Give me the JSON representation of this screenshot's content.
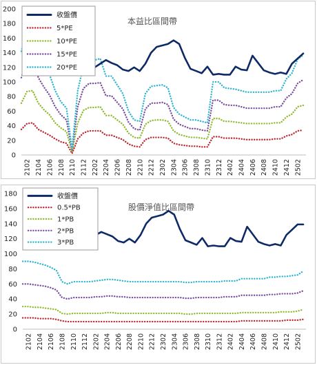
{
  "chart_data": [
    {
      "type": "line",
      "title": "本益比區間帶",
      "ylim": [
        0,
        200
      ],
      "yticks": [
        0,
        20,
        40,
        60,
        80,
        100,
        120,
        140,
        160,
        180,
        200
      ],
      "grid": false,
      "legend": "top-left",
      "x": [
        "2101",
        "2102",
        "2103",
        "2104",
        "2105",
        "2106",
        "2107",
        "2108",
        "2109",
        "2110",
        "2111",
        "2112",
        "2201",
        "2202",
        "2203",
        "2204",
        "2205",
        "2206",
        "2207",
        "2208",
        "2209",
        "2210",
        "2211",
        "2212",
        "2301",
        "2302",
        "2303",
        "2304",
        "2305",
        "2306",
        "2307",
        "2308",
        "2309",
        "2310",
        "2311",
        "2312",
        "2401",
        "2402",
        "2403",
        "2404",
        "2405",
        "2406",
        "2407",
        "2408",
        "2409",
        "2410",
        "2411",
        "2412",
        "2501",
        "2502",
        "2503"
      ],
      "xticks": [
        "2102",
        "2104",
        "2106",
        "2108",
        "2110",
        "2112",
        "2202",
        "2204",
        "2206",
        "2208",
        "2210",
        "2212",
        "2302",
        "2304",
        "2306",
        "2308",
        "2310",
        "2312",
        "2402",
        "2404",
        "2406",
        "2408",
        "2410",
        "2412",
        "2502"
      ],
      "series": [
        {
          "name": "收盤價",
          "color": "#0d2a66",
          "style": "solid",
          "values": [
            null,
            null,
            null,
            null,
            null,
            null,
            null,
            null,
            null,
            null,
            120,
            133,
            130,
            120,
            125,
            130,
            126,
            123,
            117,
            115,
            120,
            115,
            125,
            140,
            148,
            150,
            152,
            157,
            152,
            133,
            118,
            115,
            112,
            121,
            110,
            111,
            110,
            110,
            121,
            117,
            116,
            136,
            126,
            116,
            113,
            111,
            113,
            111,
            125,
            132,
            139
          ]
        },
        {
          "name": "5*PE",
          "color": "#c0282f",
          "style": "dotted",
          "values": [
            35,
            43,
            44,
            35,
            31,
            27,
            22,
            18,
            16,
            2,
            22,
            30,
            33,
            33,
            33,
            27,
            27,
            24,
            21,
            15,
            12,
            11,
            21,
            24,
            24,
            24,
            23,
            16,
            14,
            13,
            12,
            12,
            11,
            11,
            25,
            25,
            23,
            23,
            23,
            22,
            21,
            21,
            21,
            21,
            21,
            22,
            22,
            26,
            28,
            33,
            34
          ]
        },
        {
          "name": "10*PE",
          "color": "#8fbb2f",
          "style": "dotted",
          "values": [
            71,
            87,
            88,
            71,
            62,
            55,
            44,
            37,
            32,
            4,
            44,
            61,
            65,
            65,
            66,
            54,
            54,
            48,
            42,
            30,
            24,
            23,
            42,
            47,
            48,
            48,
            46,
            33,
            28,
            26,
            24,
            24,
            23,
            22,
            50,
            50,
            46,
            46,
            45,
            44,
            43,
            43,
            43,
            43,
            43,
            44,
            44,
            52,
            56,
            66,
            68
          ]
        },
        {
          "name": "15*PE",
          "color": "#7a4ea0",
          "style": "dotted",
          "values": [
            106,
            130,
            132,
            106,
            93,
            82,
            66,
            55,
            48,
            6,
            66,
            91,
            98,
            98,
            99,
            81,
            81,
            72,
            63,
            45,
            36,
            34,
            63,
            71,
            71,
            72,
            69,
            49,
            42,
            39,
            36,
            36,
            34,
            33,
            75,
            75,
            69,
            68,
            68,
            66,
            64,
            64,
            64,
            64,
            64,
            66,
            66,
            78,
            84,
            98,
            103
          ]
        },
        {
          "name": "20*PE",
          "color": "#2fb5d1",
          "style": "dotted",
          "values": [
            142,
            174,
            176,
            142,
            124,
            110,
            88,
            73,
            64,
            8,
            88,
            122,
            130,
            130,
            132,
            108,
            108,
            96,
            84,
            60,
            48,
            46,
            84,
            94,
            95,
            96,
            92,
            65,
            56,
            52,
            48,
            48,
            46,
            44,
            100,
            100,
            92,
            91,
            90,
            88,
            86,
            86,
            86,
            86,
            86,
            88,
            88,
            104,
            112,
            131,
            137
          ]
        }
      ]
    },
    {
      "type": "line",
      "title": "股價淨值比區間帶",
      "ylim": [
        0,
        180
      ],
      "yticks": [
        0,
        20,
        40,
        60,
        80,
        100,
        120,
        140,
        160,
        180
      ],
      "grid": false,
      "legend": "top-left",
      "x": [
        "2101",
        "2102",
        "2103",
        "2104",
        "2105",
        "2106",
        "2107",
        "2108",
        "2109",
        "2110",
        "2111",
        "2112",
        "2201",
        "2202",
        "2203",
        "2204",
        "2205",
        "2206",
        "2207",
        "2208",
        "2209",
        "2210",
        "2211",
        "2212",
        "2301",
        "2302",
        "2303",
        "2304",
        "2305",
        "2306",
        "2307",
        "2308",
        "2309",
        "2310",
        "2311",
        "2312",
        "2401",
        "2402",
        "2403",
        "2404",
        "2405",
        "2406",
        "2407",
        "2408",
        "2409",
        "2410",
        "2411",
        "2412",
        "2501",
        "2502",
        "2503"
      ],
      "xticks": [
        "2102",
        "2104",
        "2106",
        "2108",
        "2110",
        "2112",
        "2202",
        "2204",
        "2206",
        "2208",
        "2210",
        "2212",
        "2302",
        "2304",
        "2306",
        "2308",
        "2310",
        "2312",
        "2402",
        "2404",
        "2406",
        "2408",
        "2410",
        "2412",
        "2502"
      ],
      "series": [
        {
          "name": "收盤價",
          "color": "#0d2a66",
          "style": "solid",
          "values": [
            null,
            null,
            null,
            null,
            null,
            null,
            null,
            null,
            null,
            null,
            120,
            133,
            117,
            125,
            129,
            126,
            123,
            117,
            115,
            120,
            115,
            125,
            140,
            148,
            150,
            152,
            157,
            152,
            133,
            118,
            115,
            112,
            121,
            110,
            111,
            110,
            110,
            121,
            117,
            116,
            136,
            126,
            116,
            113,
            111,
            113,
            111,
            125,
            132,
            139,
            139
          ]
        },
        {
          "name": "0.5*PB",
          "color": "#c0282f",
          "style": "dotted",
          "values": [
            15,
            15,
            15,
            14,
            14,
            14,
            13,
            11,
            10,
            10,
            10,
            10,
            10,
            10,
            10,
            10,
            10,
            10,
            10,
            10,
            10,
            10,
            10,
            10,
            10,
            10,
            10,
            10,
            10,
            10,
            10,
            10,
            10,
            10,
            10,
            10,
            10,
            10,
            10,
            11,
            11,
            11,
            11,
            11,
            11,
            11,
            11,
            12,
            12,
            12,
            13
          ]
        },
        {
          "name": "1*PB",
          "color": "#8fbb2f",
          "style": "dotted",
          "values": [
            30,
            30,
            29,
            29,
            28,
            27,
            26,
            21,
            20,
            21,
            21,
            21,
            21,
            21,
            21,
            22,
            22,
            21,
            21,
            21,
            21,
            21,
            21,
            21,
            21,
            21,
            21,
            21,
            21,
            20,
            20,
            21,
            21,
            21,
            21,
            21,
            21,
            21,
            21,
            22,
            22,
            22,
            22,
            22,
            22,
            22,
            23,
            23,
            23,
            24,
            26
          ]
        },
        {
          "name": "2*PB",
          "color": "#7a4ea0",
          "style": "dotted",
          "values": [
            60,
            60,
            59,
            58,
            57,
            55,
            52,
            42,
            40,
            42,
            42,
            42,
            42,
            43,
            43,
            44,
            44,
            43,
            43,
            42,
            42,
            42,
            42,
            42,
            42,
            42,
            42,
            42,
            42,
            41,
            41,
            42,
            42,
            42,
            42,
            42,
            43,
            43,
            43,
            45,
            45,
            45,
            45,
            45,
            46,
            46,
            47,
            47,
            47,
            48,
            51
          ]
        },
        {
          "name": "3*PB",
          "color": "#2fb5d1",
          "style": "dotted",
          "values": [
            90,
            90,
            89,
            87,
            85,
            82,
            78,
            63,
            60,
            63,
            63,
            63,
            63,
            64,
            65,
            66,
            66,
            65,
            64,
            63,
            63,
            63,
            63,
            63,
            63,
            63,
            63,
            63,
            63,
            62,
            62,
            63,
            63,
            63,
            63,
            63,
            64,
            64,
            64,
            67,
            67,
            67,
            67,
            67,
            69,
            69,
            70,
            70,
            71,
            72,
            77
          ]
        }
      ]
    }
  ]
}
